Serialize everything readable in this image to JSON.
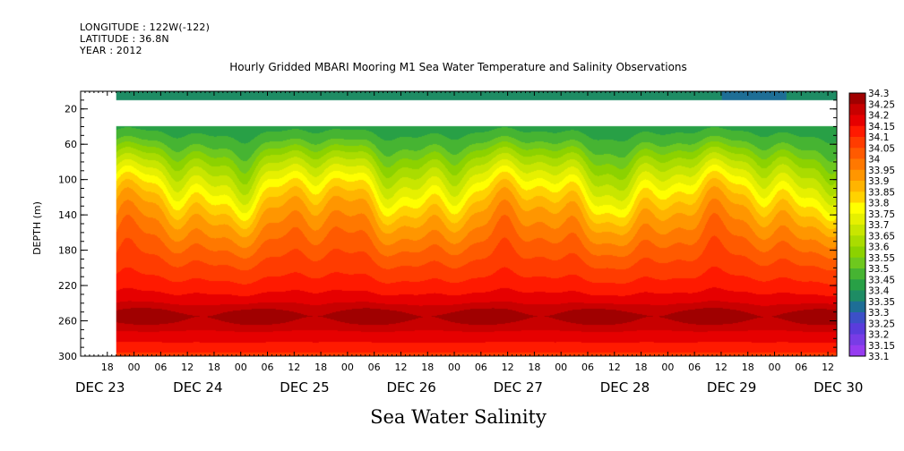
{
  "header": {
    "longitude": "LONGITUDE : 122W(-122)",
    "latitude": "LATITUDE : 36.8N",
    "year": "YEAR : 2012"
  },
  "chart_data": {
    "type": "heatmap",
    "title": "Hourly Gridded MBARI Mooring M1 Sea Water Temperature and Salinity Observations",
    "xlabel": "Sea Water Salinity",
    "ylabel": "DEPTH (m)",
    "ylim": [
      0,
      300
    ],
    "y_ticks": [
      20,
      60,
      100,
      140,
      180,
      220,
      260,
      300
    ],
    "x_hour_labels": [
      "18",
      "00",
      "06",
      "12",
      "18",
      "00",
      "06",
      "12",
      "18",
      "00",
      "06",
      "12",
      "18",
      "00",
      "06",
      "12",
      "18",
      "00",
      "06",
      "12",
      "18",
      "00",
      "06",
      "12",
      "18",
      "00",
      "06",
      "12",
      "18",
      "00",
      "06",
      "12"
    ],
    "x_day_labels": [
      "DEC 23",
      "DEC 24",
      "DEC 25",
      "DEC 26",
      "DEC 27",
      "DEC 28",
      "DEC 29",
      "DEC 30"
    ],
    "x_start": "2012-12-23 12:00",
    "x_end": "2012-12-30 14:00",
    "data_start": "2012-12-23 20:00",
    "gap_depth_range": [
      10,
      40
    ],
    "colorbar_levels": [
      34.3,
      34.25,
      34.2,
      34.15,
      34.1,
      34.05,
      34,
      33.95,
      33.9,
      33.85,
      33.8,
      33.75,
      33.7,
      33.65,
      33.6,
      33.55,
      33.5,
      33.45,
      33.4,
      33.35,
      33.3,
      33.25,
      33.2,
      33.15,
      33.1
    ],
    "colorbar_colors": [
      "#a00000",
      "#c80000",
      "#e60000",
      "#ff1a00",
      "#ff3c00",
      "#ff5a00",
      "#ff7800",
      "#ff9600",
      "#ffb400",
      "#ffd200",
      "#ffff00",
      "#e6f000",
      "#c8e600",
      "#aadc00",
      "#8cd200",
      "#6ec81e",
      "#46b432",
      "#28a046",
      "#1e8c64",
      "#1e6e96",
      "#3c50c8",
      "#5a3cdc",
      "#783ce6",
      "#963cf0",
      "#c800ff"
    ],
    "profile": [
      {
        "depth": 5,
        "value": 33.37
      },
      {
        "depth": 40,
        "value": 33.42
      },
      {
        "depth": 60,
        "value": 33.5
      },
      {
        "depth": 80,
        "value": 33.62
      },
      {
        "depth": 100,
        "value": 33.72
      },
      {
        "depth": 120,
        "value": 33.82
      },
      {
        "depth": 140,
        "value": 33.9
      },
      {
        "depth": 160,
        "value": 33.96
      },
      {
        "depth": 180,
        "value": 34.02
      },
      {
        "depth": 200,
        "value": 34.07
      },
      {
        "depth": 220,
        "value": 34.12
      },
      {
        "depth": 240,
        "value": 34.19
      },
      {
        "depth": 255,
        "value": 34.24
      },
      {
        "depth": 270,
        "value": 34.2
      },
      {
        "depth": 290,
        "value": 34.13
      },
      {
        "depth": 300,
        "value": 34.08
      }
    ]
  }
}
